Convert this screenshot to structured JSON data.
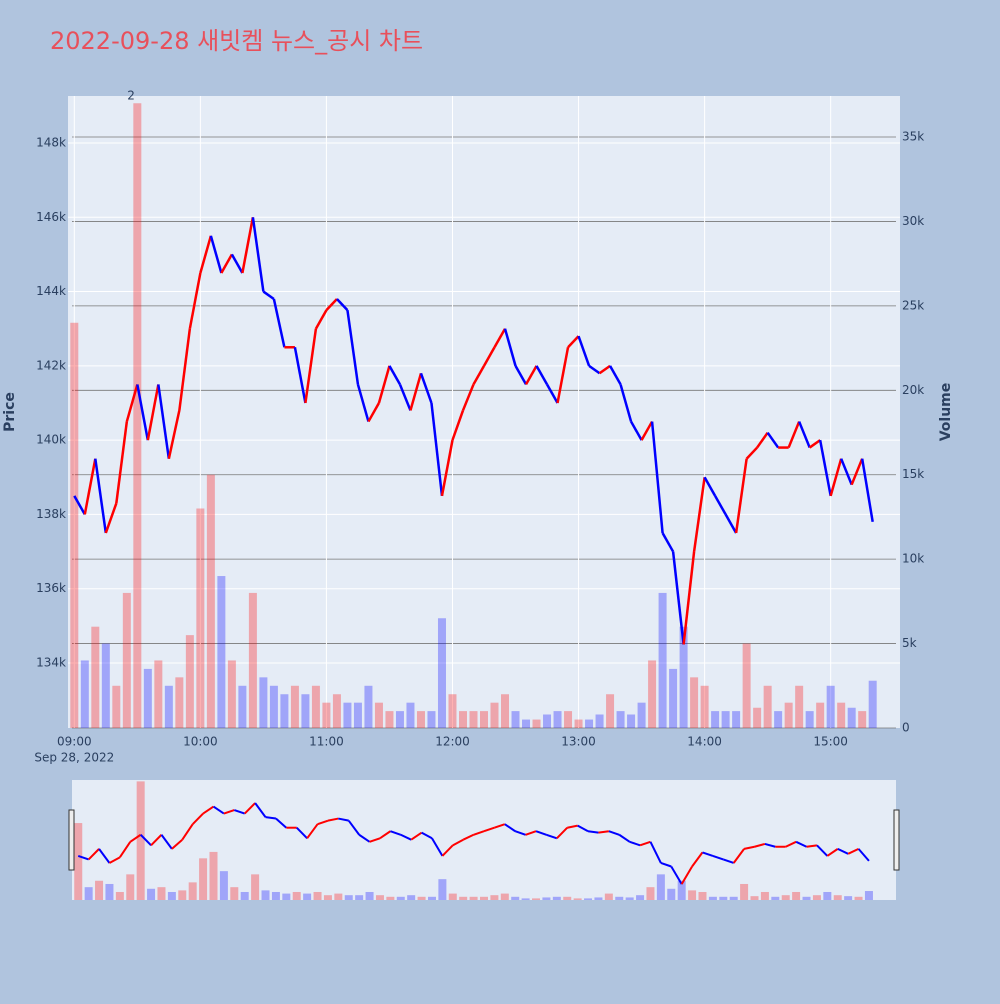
{
  "chart_data": {
    "type": "line",
    "title": "2022-09-28 새빗켐 뉴스_공시 차트",
    "x": [
      "09:00",
      "09:05",
      "09:10",
      "09:15",
      "09:20",
      "09:25",
      "09:30",
      "09:35",
      "09:40",
      "09:45",
      "09:50",
      "09:55",
      "10:00",
      "10:05",
      "10:10",
      "10:15",
      "10:20",
      "10:25",
      "10:30",
      "10:35",
      "10:40",
      "10:45",
      "10:50",
      "10:55",
      "11:00",
      "11:05",
      "11:10",
      "11:15",
      "11:20",
      "11:25",
      "11:30",
      "11:35",
      "11:40",
      "11:45",
      "11:50",
      "11:55",
      "12:00",
      "12:05",
      "12:10",
      "12:15",
      "12:20",
      "12:25",
      "12:30",
      "12:35",
      "12:40",
      "12:45",
      "12:50",
      "12:55",
      "13:00",
      "13:05",
      "13:10",
      "13:15",
      "13:20",
      "13:25",
      "13:30",
      "13:35",
      "13:40",
      "13:45",
      "13:50",
      "13:55",
      "14:00",
      "14:05",
      "14:10",
      "14:15",
      "14:20",
      "14:25",
      "14:30",
      "14:35",
      "14:40",
      "14:45",
      "14:50",
      "14:55",
      "15:00",
      "15:05",
      "15:10",
      "15:15",
      "15:20"
    ],
    "series": [
      {
        "axis": "y",
        "values": [
          138500,
          138000,
          139500,
          137500,
          138300,
          140500,
          141500,
          140000,
          141500,
          139500,
          140800,
          143000,
          144500,
          145500,
          144500,
          145000,
          144500,
          146000,
          144000,
          143800,
          142500,
          142500,
          141000,
          143000,
          143500,
          143800,
          143500,
          141500,
          140500,
          141000,
          142000,
          141500,
          140800,
          141800,
          141000,
          138500,
          140000,
          140800,
          141500,
          142000,
          142500,
          143000,
          142000,
          141500,
          142000,
          141500,
          141000,
          142500,
          142800,
          142000,
          141800,
          142000,
          141500,
          140500,
          140000,
          140500,
          137500,
          137000,
          134500,
          137000,
          139000,
          138500,
          138000,
          137500,
          139500,
          139800,
          140200,
          139800,
          139800,
          140500,
          139800,
          140000,
          138500,
          139500,
          138800,
          139500,
          137800
        ]
      },
      {
        "type": "bar",
        "axis": "y2",
        "values": [
          24000,
          4000,
          6000,
          5000,
          2500,
          8000,
          37000,
          3500,
          4000,
          2500,
          3000,
          5500,
          13000,
          15000,
          9000,
          4000,
          2500,
          8000,
          3000,
          2500,
          2000,
          2500,
          2000,
          2500,
          1500,
          2000,
          1500,
          1500,
          2500,
          1500,
          1000,
          1000,
          1500,
          1000,
          1000,
          6500,
          2000,
          1000,
          1000,
          1000,
          1500,
          2000,
          1000,
          500,
          500,
          800,
          1000,
          1000,
          500,
          500,
          800,
          2000,
          1000,
          800,
          1500,
          4000,
          8000,
          3500,
          6000,
          3000,
          2500,
          1000,
          1000,
          1000,
          5000,
          1200,
          2500,
          1000,
          1500,
          2500,
          1000,
          1500,
          2500,
          1500,
          1200,
          1000,
          2800
        ]
      }
    ],
    "up_color": "#ff0000",
    "down_color": "#0000ff",
    "xlim": [
      "08:57",
      "15:33"
    ],
    "xticks": [
      "09:00",
      "10:00",
      "11:00",
      "12:00",
      "13:00",
      "14:00",
      "15:00"
    ],
    "x_date_label": "Sep 28, 2022",
    "ylim": [
      132250,
      149265
    ],
    "yticks": [
      {
        "value": 134000,
        "label": "134k"
      },
      {
        "value": 136000,
        "label": "136k"
      },
      {
        "value": 138000,
        "label": "138k"
      },
      {
        "value": 140000,
        "label": "140k"
      },
      {
        "value": 142000,
        "label": "142k"
      },
      {
        "value": 144000,
        "label": "144k"
      },
      {
        "value": 146000,
        "label": "146k"
      },
      {
        "value": 148000,
        "label": "148k"
      }
    ],
    "y2lim": [
      0,
      37430
    ],
    "y2ticks": [
      0,
      {
        "value": 5000,
        "label": "5k"
      },
      {
        "value": 10000,
        "label": "10k"
      },
      {
        "value": 15000,
        "label": "15k"
      },
      {
        "value": 20000,
        "label": "20k"
      },
      {
        "value": 25000,
        "label": "25k"
      },
      {
        "value": 30000,
        "label": "30k"
      },
      {
        "value": 35000,
        "label": "35k"
      }
    ],
    "ylabel": "Price",
    "y2label": "Volume",
    "annotations": [
      {
        "x": "09:27",
        "text": "2"
      }
    ],
    "grid": true,
    "range_slider": true
  }
}
